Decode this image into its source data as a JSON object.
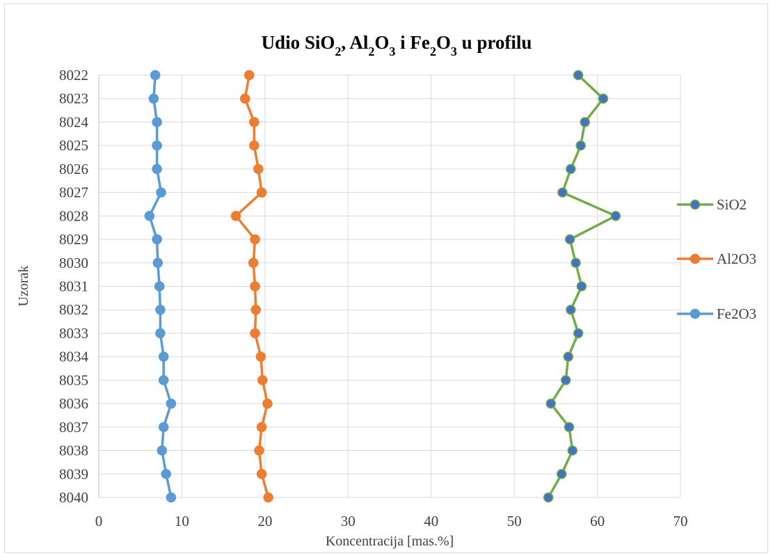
{
  "chart_data": {
    "type": "line",
    "title": {
      "prefix": "Udio SiO",
      "sub1": "2",
      "mid1": ",  Al",
      "sub2": "2",
      "mid2": "O",
      "sub3": "3",
      "mid3": " i Fe",
      "sub4": "2",
      "mid4": "O",
      "sub5": "3",
      "suffix": " u profilu"
    },
    "xlabel": "Koncentracija [mas.%]",
    "ylabel": "Uzorak",
    "xlim": [
      0,
      70
    ],
    "xticks": [
      0,
      10,
      20,
      30,
      40,
      50,
      60,
      70
    ],
    "categories": [
      "8022",
      "8023",
      "8024",
      "8025",
      "8026",
      "8027",
      "8028",
      "8029",
      "8030",
      "8031",
      "8032",
      "8033",
      "8034",
      "8035",
      "8036",
      "8037",
      "8038",
      "8039",
      "8040"
    ],
    "category_axis": "y",
    "grid": true,
    "legend_position": "right",
    "series": [
      {
        "name": "SiO2",
        "color": "#70ad47",
        "marker_color": "#4472c4",
        "values": [
          57.7,
          60.7,
          58.5,
          58.0,
          56.8,
          55.8,
          62.2,
          56.7,
          57.4,
          58.1,
          56.8,
          57.7,
          56.5,
          56.2,
          54.4,
          56.6,
          57.0,
          55.7,
          54.1
        ]
      },
      {
        "name": "Al2O3",
        "color": "#ed7d31",
        "marker_color": "#ed7d31",
        "values": [
          18.1,
          17.6,
          18.7,
          18.7,
          19.2,
          19.6,
          16.5,
          18.8,
          18.6,
          18.8,
          18.9,
          18.8,
          19.5,
          19.7,
          20.3,
          19.6,
          19.3,
          19.6,
          20.4
        ]
      },
      {
        "name": "Fe2O3",
        "color": "#5b9bd5",
        "marker_color": "#5b9bd5",
        "values": [
          6.8,
          6.6,
          7.0,
          7.0,
          7.0,
          7.5,
          6.1,
          7.0,
          7.1,
          7.3,
          7.4,
          7.4,
          7.8,
          7.8,
          8.7,
          7.8,
          7.6,
          8.1,
          8.7
        ]
      }
    ]
  }
}
